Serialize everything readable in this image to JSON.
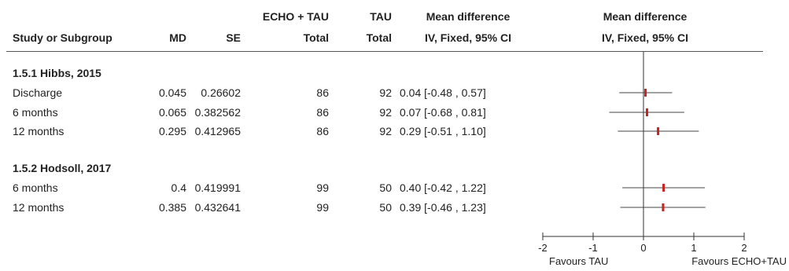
{
  "columns": {
    "study": "Study or Subgroup",
    "md": "MD",
    "se": "SE",
    "exp_group": "ECHO + TAU",
    "exp_total": "Total",
    "ctl_group": "TAU",
    "ctl_total": "Total",
    "ci_title": "Mean difference",
    "ci_sub": "IV, Fixed, 95% CI",
    "plot_title": "Mean difference",
    "plot_sub": "IV, Fixed, 95% CI"
  },
  "groups": [
    {
      "title": "1.5.1 Hibbs, 2015",
      "rows": [
        {
          "label": "Discharge",
          "md": "0.045",
          "se": "0.26602",
          "exp_total": "86",
          "ctl_total": "92",
          "ci": "0.04 [-0.48 , 0.57]"
        },
        {
          "label": "6 months",
          "md": "0.065",
          "se": "0.382562",
          "exp_total": "86",
          "ctl_total": "92",
          "ci": "0.07 [-0.68 , 0.81]"
        },
        {
          "label": "12 months",
          "md": "0.295",
          "se": "0.412965",
          "exp_total": "86",
          "ctl_total": "92",
          "ci": "0.29 [-0.51 , 1.10]"
        }
      ]
    },
    {
      "title": "1.5.2 Hodsoll, 2017",
      "rows": [
        {
          "label": "6 months",
          "md": "0.4",
          "se": "0.419991",
          "exp_total": "99",
          "ctl_total": "50",
          "ci": "0.40 [-0.42 , 1.22]"
        },
        {
          "label": "12 months",
          "md": "0.385",
          "se": "0.432641",
          "exp_total": "99",
          "ctl_total": "50",
          "ci": "0.39 [-0.46 , 1.23]"
        }
      ]
    }
  ],
  "axis": {
    "ticks": [
      "-2",
      "-1",
      "0",
      "1",
      "2"
    ],
    "favours_left": "Favours TAU",
    "favours_right": "Favours ECHO+TAU"
  },
  "colors": {
    "point": "#cc1f1f",
    "line": "#333333"
  },
  "chart_data": {
    "type": "scatter",
    "subtype": "forest-plot",
    "xlim": [
      -2,
      2
    ],
    "xticks": [
      -2,
      -1,
      0,
      1,
      2
    ],
    "reference_line": 0,
    "points": [
      {
        "study": "Hibbs, 2015",
        "label": "Discharge",
        "estimate": 0.04,
        "lower": -0.48,
        "upper": 0.57
      },
      {
        "study": "Hibbs, 2015",
        "label": "6 months",
        "estimate": 0.07,
        "lower": -0.68,
        "upper": 0.81
      },
      {
        "study": "Hibbs, 2015",
        "label": "12 months",
        "estimate": 0.29,
        "lower": -0.51,
        "upper": 1.1
      },
      {
        "study": "Hodsoll, 2017",
        "label": "6 months",
        "estimate": 0.4,
        "lower": -0.42,
        "upper": 1.22
      },
      {
        "study": "Hodsoll, 2017",
        "label": "12 months",
        "estimate": 0.39,
        "lower": -0.46,
        "upper": 1.23
      }
    ]
  }
}
